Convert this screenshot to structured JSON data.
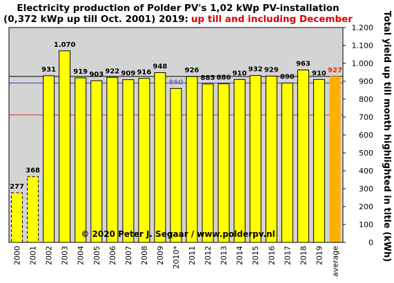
{
  "chart_data": {
    "type": "bar",
    "title": "Electricity production  of Polder PV's 1,02 kWp PV-installation",
    "subtitle_black": "(0,372 kWp up till Oct. 2001) 2019:",
    "subtitle_red": "up till and including  December",
    "ylabel": "Total yield up till month highlighted in title (kWh)",
    "copyright": "© 2020 Peter J. Segaar / www.polderpv.nl",
    "ylim": [
      0,
      1200
    ],
    "y_ticks": [
      0,
      100,
      200,
      300,
      400,
      500,
      600,
      700,
      800,
      900,
      1000,
      1100,
      1200
    ],
    "y_tick_labels": [
      "0",
      "100",
      "200",
      "300",
      "400",
      "500",
      "600",
      "700",
      "800",
      "900",
      "1.000",
      "1.100",
      "1.200"
    ],
    "grid": false,
    "legend": "none",
    "categories": [
      "2000",
      "2001",
      "2002",
      "2003",
      "2004",
      "2005",
      "2006",
      "2007",
      "2008",
      "2009",
      "2010*",
      "2011",
      "2012",
      "2013",
      "2014",
      "2015",
      "2016",
      "2017",
      "2018",
      "2019",
      "average"
    ],
    "values": [
      277,
      368,
      931,
      1070,
      919,
      903,
      922,
      909,
      916,
      948,
      860,
      926,
      885,
      886,
      910,
      932,
      929,
      890,
      963,
      910,
      927
    ],
    "value_labels": [
      "277",
      "368",
      "931",
      "1.070",
      "919",
      "903",
      "922",
      "909",
      "916",
      "948",
      "860",
      "926",
      "885",
      "886",
      "910",
      "932",
      "929",
      "890",
      "963",
      "910",
      "927"
    ],
    "reference_lines": [
      {
        "value": 927,
        "color": "#000000"
      },
      {
        "value": 890,
        "color": "#3333cc"
      },
      {
        "value": 712,
        "color": "#cc3333"
      }
    ],
    "colors": {
      "plot_bg": "#d4d4d4",
      "bar": "#ffff00",
      "average_bar": "#ffb000",
      "label_normal": "#000000",
      "label_2010": "#7777aa",
      "label_average": "#ff2200",
      "subtitle_red": "#dd0000"
    },
    "dashed_categories": [
      "2000",
      "2001"
    ]
  }
}
